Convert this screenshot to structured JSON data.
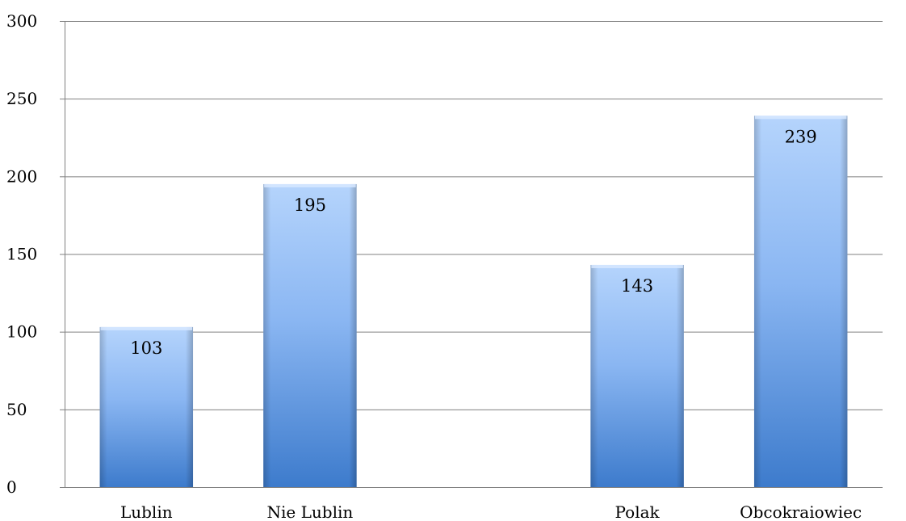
{
  "chart_data": {
    "type": "bar",
    "categories": [
      "Lublin",
      "Nie Lublin",
      "",
      "Polak",
      "Obcokraiowiec"
    ],
    "values": [
      103,
      195,
      null,
      143,
      239
    ],
    "data_labels": [
      "103",
      "195",
      "",
      "143",
      "239"
    ],
    "title": "",
    "xlabel": "",
    "ylabel": "",
    "ylim": [
      0,
      300
    ],
    "yticks": [
      0,
      50,
      100,
      150,
      200,
      250,
      300
    ],
    "grid": true,
    "legend": "none",
    "colors": {
      "bar_light": "#a9cdfb",
      "bar_dark": "#3f7fd0",
      "grid": "#808080"
    }
  }
}
